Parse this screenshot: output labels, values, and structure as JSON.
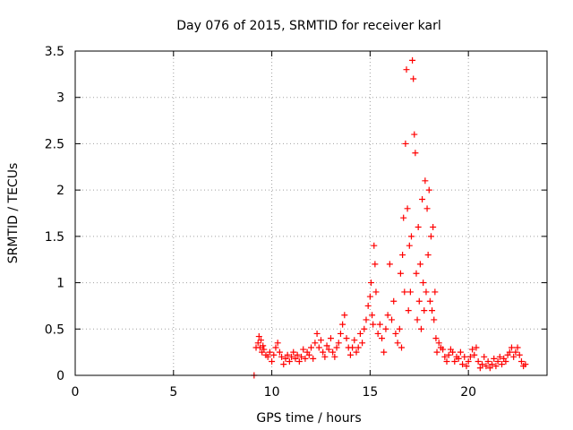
{
  "chart_data": {
    "type": "scatter",
    "title": "Day 076 of 2015, SRMTID for receiver karl",
    "xlabel": "GPS time / hours",
    "ylabel": "SRMTID / TECUs",
    "xlim": [
      0,
      24
    ],
    "ylim": [
      0,
      3.5
    ],
    "xticks": [
      0,
      5,
      10,
      15,
      20
    ],
    "xtick_labels": [
      "0",
      "5",
      "10",
      "15",
      "20"
    ],
    "yticks": [
      0,
      0.5,
      1,
      1.5,
      2,
      2.5,
      3,
      3.5
    ],
    "ytick_labels": [
      "0",
      "0.5",
      "1",
      "1.5",
      "2",
      "2.5",
      "3",
      "3.5"
    ],
    "grid": true,
    "marker": "+",
    "series": [
      {
        "name": "SRMTID",
        "color": "#ff0000",
        "x": [
          9.1,
          9.2,
          9.3,
          9.35,
          9.4,
          9.45,
          9.5,
          9.55,
          9.6,
          9.7,
          9.8,
          9.9,
          10.0,
          10.1,
          10.2,
          10.3,
          10.4,
          10.5,
          10.6,
          10.7,
          10.8,
          10.9,
          11.0,
          11.1,
          11.2,
          11.3,
          11.4,
          11.5,
          11.6,
          11.7,
          11.8,
          11.9,
          12.0,
          12.1,
          12.2,
          12.3,
          12.4,
          12.5,
          12.6,
          12.7,
          12.8,
          12.9,
          13.0,
          13.1,
          13.2,
          13.3,
          13.4,
          13.5,
          13.6,
          13.7,
          13.8,
          13.9,
          14.0,
          14.1,
          14.2,
          14.3,
          14.4,
          14.5,
          14.6,
          14.7,
          14.8,
          14.9,
          15.0,
          15.05,
          15.1,
          15.15,
          15.2,
          15.25,
          15.3,
          15.4,
          15.5,
          15.6,
          15.7,
          15.8,
          15.9,
          16.0,
          16.1,
          16.2,
          16.3,
          16.4,
          16.5,
          16.55,
          16.6,
          16.65,
          16.7,
          16.75,
          16.8,
          16.85,
          16.9,
          16.95,
          17.0,
          17.05,
          17.1,
          17.15,
          17.2,
          17.25,
          17.3,
          17.35,
          17.4,
          17.45,
          17.5,
          17.55,
          17.6,
          17.65,
          17.7,
          17.75,
          17.8,
          17.85,
          17.9,
          17.95,
          18.0,
          18.05,
          18.1,
          18.15,
          18.2,
          18.25,
          18.3,
          18.35,
          18.4,
          18.5,
          18.6,
          18.7,
          18.8,
          18.9,
          19.0,
          19.1,
          19.2,
          19.3,
          19.4,
          19.5,
          19.6,
          19.7,
          19.8,
          19.9,
          20.0,
          20.1,
          20.2,
          20.3,
          20.4,
          20.5,
          20.6,
          20.7,
          20.8,
          20.9,
          21.0,
          21.1,
          21.2,
          21.3,
          21.4,
          21.5,
          21.6,
          21.7,
          21.8,
          21.9,
          22.0,
          22.1,
          22.2,
          22.3,
          22.4,
          22.5,
          22.6,
          22.7,
          22.8,
          22.9
        ],
        "y": [
          0.0,
          0.3,
          0.35,
          0.42,
          0.3,
          0.38,
          0.25,
          0.32,
          0.28,
          0.22,
          0.2,
          0.25,
          0.15,
          0.22,
          0.3,
          0.35,
          0.25,
          0.2,
          0.12,
          0.18,
          0.22,
          0.15,
          0.2,
          0.25,
          0.18,
          0.22,
          0.15,
          0.2,
          0.28,
          0.18,
          0.25,
          0.22,
          0.3,
          0.18,
          0.35,
          0.45,
          0.3,
          0.38,
          0.25,
          0.2,
          0.32,
          0.28,
          0.4,
          0.25,
          0.2,
          0.3,
          0.35,
          0.45,
          0.55,
          0.65,
          0.4,
          0.3,
          0.22,
          0.3,
          0.38,
          0.25,
          0.3,
          0.45,
          0.35,
          0.5,
          0.6,
          0.75,
          0.85,
          1.0,
          0.65,
          0.55,
          1.4,
          1.2,
          0.9,
          0.45,
          0.55,
          0.4,
          0.25,
          0.5,
          0.65,
          1.2,
          0.6,
          0.8,
          0.45,
          0.35,
          0.5,
          1.1,
          0.3,
          1.3,
          1.7,
          0.9,
          2.5,
          3.3,
          1.8,
          0.7,
          1.4,
          0.9,
          1.5,
          3.4,
          3.2,
          2.6,
          2.4,
          1.1,
          0.6,
          1.6,
          0.8,
          1.2,
          0.5,
          1.9,
          1.0,
          0.7,
          2.1,
          0.9,
          1.8,
          1.3,
          2.0,
          0.8,
          1.5,
          0.7,
          1.6,
          0.6,
          0.9,
          0.4,
          0.25,
          0.35,
          0.3,
          0.28,
          0.2,
          0.15,
          0.22,
          0.28,
          0.25,
          0.15,
          0.2,
          0.18,
          0.25,
          0.12,
          0.2,
          0.1,
          0.15,
          0.2,
          0.28,
          0.22,
          0.3,
          0.15,
          0.08,
          0.12,
          0.2,
          0.1,
          0.15,
          0.08,
          0.12,
          0.18,
          0.1,
          0.15,
          0.2,
          0.12,
          0.18,
          0.15,
          0.22,
          0.25,
          0.3,
          0.2,
          0.25,
          0.3,
          0.22,
          0.15,
          0.1,
          0.12
        ]
      }
    ]
  }
}
